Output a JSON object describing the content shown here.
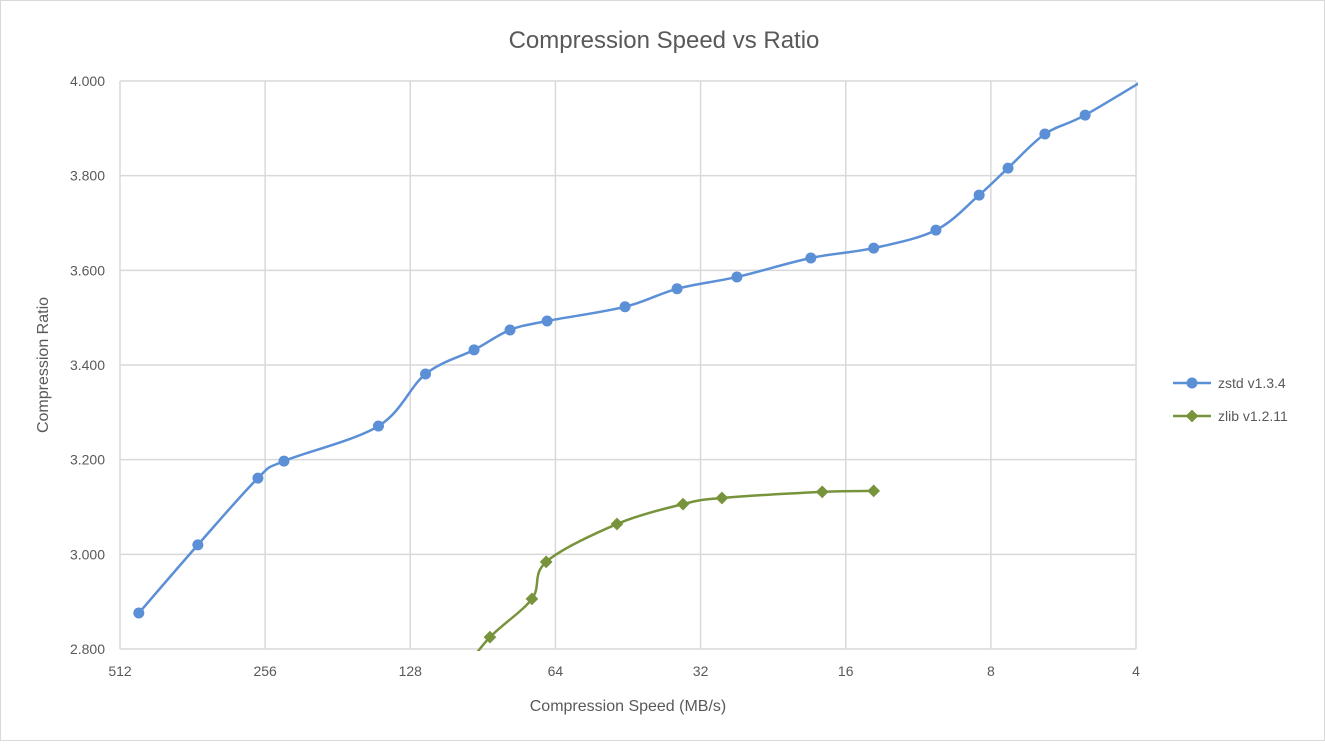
{
  "chart_data": {
    "type": "line",
    "title": "Compression Speed vs Ratio",
    "xlabel": "Compression Speed (MB/s)",
    "ylabel": "Compression Ratio",
    "x_scale": "log2-reversed",
    "xlim": [
      512,
      4
    ],
    "ylim": [
      2.8,
      4.0
    ],
    "x_ticks": [
      "512",
      "256",
      "128",
      "64",
      "32",
      "16",
      "8",
      "4"
    ],
    "y_ticks": [
      "2.800",
      "3.000",
      "3.200",
      "3.400",
      "3.600",
      "3.800",
      "4.000"
    ],
    "grid": true,
    "legend_position": "right",
    "series": [
      {
        "name": "zstd v1.3.4",
        "color": "#5b8fd6",
        "marker": "circle",
        "x": [
          468,
          353,
          265,
          234,
          149,
          119,
          94.4,
          79.5,
          66.6,
          45.9,
          35.8,
          26.9,
          18.9,
          14.0,
          10.4,
          8.46,
          7.37,
          6.18,
          5.1,
          3.6
        ],
        "y": [
          2.876,
          3.02,
          3.161,
          3.197,
          3.271,
          3.381,
          3.432,
          3.474,
          3.493,
          3.523,
          3.561,
          3.586,
          3.626,
          3.647,
          3.685,
          3.759,
          3.816,
          3.888,
          3.928,
          4.02
        ]
      },
      {
        "name": "zlib v1.2.11",
        "color": "#77933c",
        "marker": "diamond",
        "x": [
          100,
          87.5,
          71.6,
          66.9,
          47.7,
          34.8,
          28.9,
          17.9,
          14.0
        ],
        "y": [
          2.75,
          2.825,
          2.906,
          2.984,
          3.064,
          3.106,
          3.119,
          3.132,
          3.134
        ]
      }
    ]
  }
}
